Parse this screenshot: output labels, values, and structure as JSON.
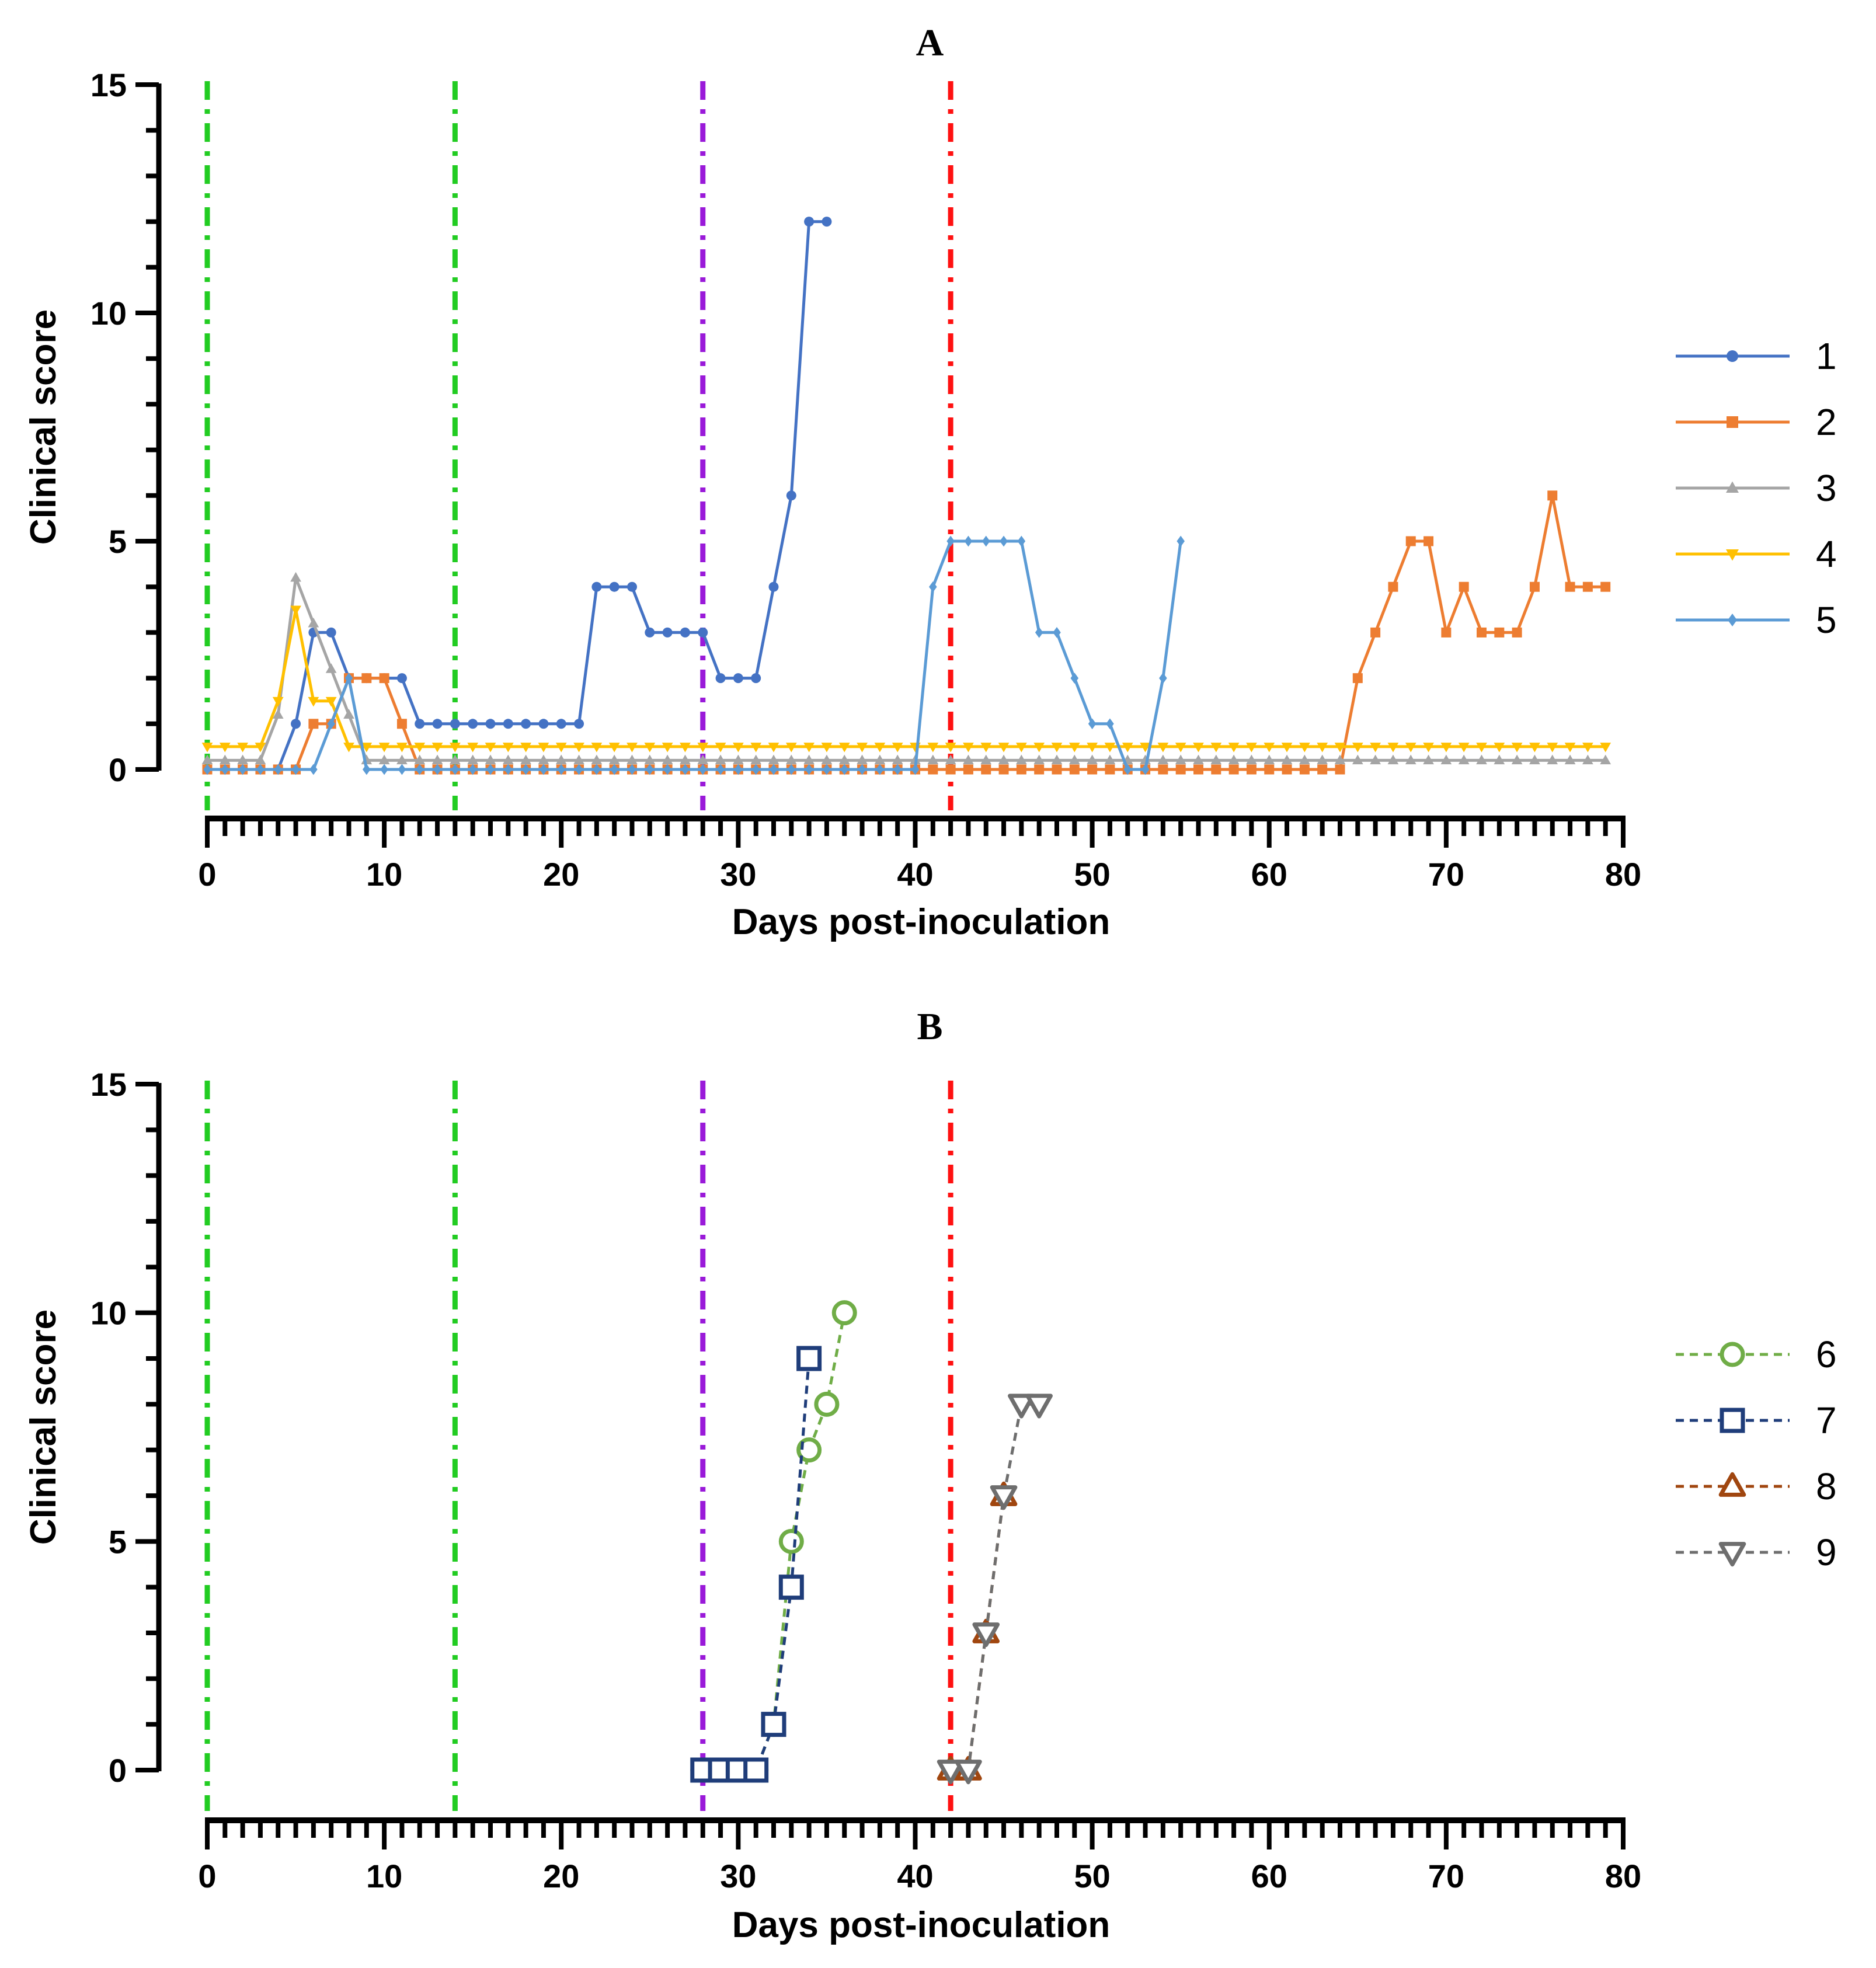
{
  "chart_data": [
    {
      "type": "line",
      "panel_label": "A",
      "xlabel": "Days post-inoculation",
      "ylabel": "Clinical score",
      "xlim": [
        0,
        80
      ],
      "ylim": [
        0,
        15
      ],
      "xticks": [
        0,
        10,
        20,
        30,
        40,
        50,
        60,
        70,
        80
      ],
      "yticks": [
        0,
        5,
        10,
        15
      ],
      "grid": false,
      "legend_position": "right",
      "reference_lines": [
        {
          "x": 0,
          "color": "#22cc22"
        },
        {
          "x": 14,
          "color": "#22cc22"
        },
        {
          "x": 28,
          "color": "#9a1ad9"
        },
        {
          "x": 42,
          "color": "#ff1111"
        }
      ],
      "series": [
        {
          "name": "1",
          "color": "#4472c4",
          "marker": "circle",
          "style": "solid",
          "x": [
            0,
            1,
            2,
            3,
            4,
            5,
            6,
            7,
            8,
            9,
            10,
            11,
            12,
            13,
            14,
            15,
            16,
            17,
            18,
            19,
            20,
            21,
            22,
            23,
            24,
            25,
            26,
            27,
            28,
            29,
            30,
            31,
            32,
            33,
            34,
            35
          ],
          "y": [
            0,
            0,
            0,
            0,
            0,
            1,
            3,
            3,
            2,
            2,
            2,
            2,
            1,
            1,
            1,
            1,
            1,
            1,
            1,
            1,
            1,
            1,
            4,
            4,
            4,
            3,
            3,
            3,
            3,
            2,
            2,
            2,
            4,
            6,
            12,
            12
          ]
        },
        {
          "name": "2",
          "color": "#ed7d31",
          "marker": "square",
          "style": "solid",
          "x": [
            0,
            1,
            2,
            3,
            4,
            5,
            6,
            7,
            8,
            9,
            10,
            11,
            12,
            13,
            14,
            15,
            16,
            17,
            18,
            19,
            20,
            21,
            22,
            23,
            24,
            25,
            26,
            27,
            28,
            29,
            30,
            31,
            32,
            33,
            34,
            35,
            36,
            37,
            38,
            39,
            40,
            41,
            42,
            43,
            44,
            45,
            46,
            47,
            48,
            49,
            50,
            51,
            52,
            53,
            54,
            55,
            56,
            57,
            58,
            59,
            60,
            61,
            62,
            63,
            64,
            65,
            66,
            67,
            68,
            69,
            70,
            71,
            72,
            73,
            74,
            75,
            76,
            77,
            78,
            79
          ],
          "y": [
            0,
            0,
            0,
            0,
            0,
            0,
            1,
            1,
            2,
            2,
            2,
            1,
            0,
            0,
            0,
            0,
            0,
            0,
            0,
            0,
            0,
            0,
            0,
            0,
            0,
            0,
            0,
            0,
            0,
            0,
            0,
            0,
            0,
            0,
            0,
            0,
            0,
            0,
            0,
            0,
            0,
            0,
            0,
            0,
            0,
            0,
            0,
            0,
            0,
            0,
            0,
            0,
            0,
            0,
            0,
            0,
            0,
            0,
            0,
            0,
            0,
            0,
            0,
            0,
            0,
            2,
            3,
            4,
            5,
            5,
            3,
            4,
            3,
            3,
            3,
            4,
            6,
            4,
            4,
            4
          ]
        },
        {
          "name": "3",
          "color": "#a5a5a5",
          "marker": "triangle-up",
          "style": "solid",
          "x": [
            0,
            1,
            2,
            3,
            4,
            5,
            6,
            7,
            8,
            9,
            10,
            11,
            12,
            13,
            14,
            15,
            16,
            17,
            18,
            19,
            20,
            21,
            22,
            23,
            24,
            25,
            26,
            27,
            28,
            29,
            30,
            31,
            32,
            33,
            34,
            35,
            36,
            37,
            38,
            39,
            40,
            41,
            42,
            43,
            44,
            45,
            46,
            47,
            48,
            49,
            50,
            51,
            52,
            53,
            54,
            55,
            56,
            57,
            58,
            59,
            60,
            61,
            62,
            63,
            64,
            65,
            66,
            67,
            68,
            69,
            70,
            71,
            72,
            73,
            74,
            75,
            76,
            77,
            78,
            79
          ],
          "y": [
            0.2,
            0.2,
            0.2,
            0.2,
            1.2,
            4.2,
            3.2,
            2.2,
            1.2,
            0.2,
            0.2,
            0.2,
            0.2,
            0.2,
            0.2,
            0.2,
            0.2,
            0.2,
            0.2,
            0.2,
            0.2,
            0.2,
            0.2,
            0.2,
            0.2,
            0.2,
            0.2,
            0.2,
            0.2,
            0.2,
            0.2,
            0.2,
            0.2,
            0.2,
            0.2,
            0.2,
            0.2,
            0.2,
            0.2,
            0.2,
            0.2,
            0.2,
            0.2,
            0.2,
            0.2,
            0.2,
            0.2,
            0.2,
            0.2,
            0.2,
            0.2,
            0.2,
            0.2,
            0.2,
            0.2,
            0.2,
            0.2,
            0.2,
            0.2,
            0.2,
            0.2,
            0.2,
            0.2,
            0.2,
            0.2,
            0.2,
            0.2,
            0.2,
            0.2,
            0.2,
            0.2,
            0.2,
            0.2,
            0.2,
            0.2,
            0.2,
            0.2,
            0.2,
            0.2,
            0.2
          ]
        },
        {
          "name": "4",
          "color": "#ffc000",
          "marker": "triangle-down",
          "style": "solid",
          "x": [
            0,
            1,
            2,
            3,
            4,
            5,
            6,
            7,
            8,
            9,
            10,
            11,
            12,
            13,
            14,
            15,
            16,
            17,
            18,
            19,
            20,
            21,
            22,
            23,
            24,
            25,
            26,
            27,
            28,
            29,
            30,
            31,
            32,
            33,
            34,
            35,
            36,
            37,
            38,
            39,
            40,
            41,
            42,
            43,
            44,
            45,
            46,
            47,
            48,
            49,
            50,
            51,
            52,
            53,
            54,
            55,
            56,
            57,
            58,
            59,
            60,
            61,
            62,
            63,
            64,
            65,
            66,
            67,
            68,
            69,
            70,
            71,
            72,
            73,
            74,
            75,
            76,
            77,
            78,
            79
          ],
          "y": [
            0.5,
            0.5,
            0.5,
            0.5,
            1.5,
            3.5,
            1.5,
            1.5,
            0.5,
            0.5,
            0.5,
            0.5,
            0.5,
            0.5,
            0.5,
            0.5,
            0.5,
            0.5,
            0.5,
            0.5,
            0.5,
            0.5,
            0.5,
            0.5,
            0.5,
            0.5,
            0.5,
            0.5,
            0.5,
            0.5,
            0.5,
            0.5,
            0.5,
            0.5,
            0.5,
            0.5,
            0.5,
            0.5,
            0.5,
            0.5,
            0.5,
            0.5,
            0.5,
            0.5,
            0.5,
            0.5,
            0.5,
            0.5,
            0.5,
            0.5,
            0.5,
            0.5,
            0.5,
            0.5,
            0.5,
            0.5,
            0.5,
            0.5,
            0.5,
            0.5,
            0.5,
            0.5,
            0.5,
            0.5,
            0.5,
            0.5,
            0.5,
            0.5,
            0.5,
            0.5,
            0.5,
            0.5,
            0.5,
            0.5,
            0.5,
            0.5,
            0.5,
            0.5,
            0.5,
            0.5
          ]
        },
        {
          "name": "5",
          "color": "#5b9bd5",
          "marker": "diamond",
          "style": "solid",
          "x": [
            0,
            1,
            2,
            3,
            4,
            5,
            6,
            7,
            8,
            9,
            10,
            11,
            12,
            13,
            14,
            15,
            16,
            17,
            18,
            19,
            20,
            21,
            22,
            23,
            24,
            25,
            26,
            27,
            28,
            29,
            30,
            31,
            32,
            33,
            34,
            35,
            36,
            37,
            38,
            39,
            40,
            41,
            42,
            43,
            44,
            45,
            46,
            47,
            48,
            49,
            50,
            51,
            52,
            53,
            54,
            55
          ],
          "y": [
            0,
            0,
            0,
            0,
            0,
            0,
            0,
            1,
            2,
            0,
            0,
            0,
            0,
            0,
            0,
            0,
            0,
            0,
            0,
            0,
            0,
            0,
            0,
            0,
            0,
            0,
            0,
            0,
            0,
            0,
            0,
            0,
            0,
            0,
            0,
            0,
            0,
            0,
            0,
            0,
            0,
            4,
            5,
            5,
            5,
            5,
            5,
            3,
            3,
            2,
            1,
            1,
            0,
            0,
            2,
            5
          ]
        }
      ]
    },
    {
      "type": "line",
      "panel_label": "B",
      "xlabel": "Days post-inoculation",
      "ylabel": "Clinical score",
      "xlim": [
        0,
        80
      ],
      "ylim": [
        0,
        15
      ],
      "xticks": [
        0,
        10,
        20,
        30,
        40,
        50,
        60,
        70,
        80
      ],
      "yticks": [
        0,
        5,
        10,
        15
      ],
      "grid": false,
      "legend_position": "right",
      "reference_lines": [
        {
          "x": 0,
          "color": "#22cc22"
        },
        {
          "x": 14,
          "color": "#22cc22"
        },
        {
          "x": 28,
          "color": "#9a1ad9"
        },
        {
          "x": 42,
          "color": "#ff1111"
        }
      ],
      "series": [
        {
          "name": "6",
          "color": "#70ad47",
          "marker": "circle-open",
          "style": "dashed",
          "x": [
            28,
            29,
            30,
            31,
            32,
            33,
            34,
            35,
            36
          ],
          "y": [
            0,
            0,
            0,
            0,
            1,
            5,
            7,
            8,
            10
          ]
        },
        {
          "name": "7",
          "color": "#1f3d7a",
          "marker": "square-open",
          "style": "dashed",
          "x": [
            28,
            29,
            30,
            31,
            32,
            33,
            34
          ],
          "y": [
            0,
            0,
            0,
            0,
            1,
            4,
            9
          ]
        },
        {
          "name": "8",
          "color": "#a0460f",
          "marker": "triangle-up-open",
          "style": "dashed",
          "x": [
            42,
            43,
            44,
            45
          ],
          "y": [
            0,
            0,
            3,
            6
          ]
        },
        {
          "name": "9",
          "color": "#6e6e6e",
          "marker": "triangle-down-open",
          "style": "dashed",
          "x": [
            42,
            43,
            44,
            45,
            46,
            47
          ],
          "y": [
            0,
            0,
            3,
            6,
            8,
            8
          ]
        }
      ]
    }
  ]
}
